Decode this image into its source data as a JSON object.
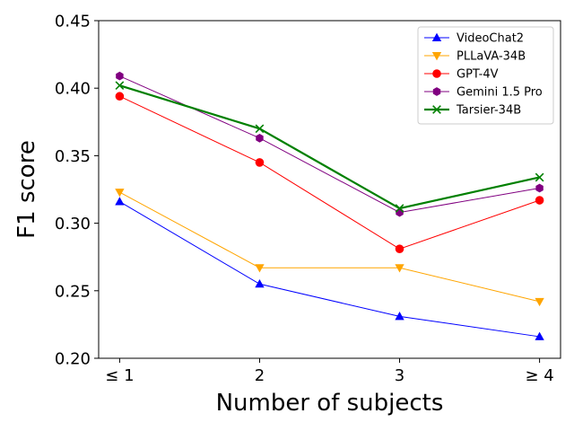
{
  "chart_data": {
    "type": "line",
    "title": "",
    "xlabel": "Number of subjects",
    "ylabel": "F1 score",
    "categories": [
      "≤ 1",
      "2",
      "3",
      "≥ 4"
    ],
    "ylim": [
      0.2,
      0.45
    ],
    "yticks": [
      "0.20",
      "0.25",
      "0.30",
      "0.35",
      "0.40",
      "0.45"
    ],
    "grid": false,
    "legend_position": "top-right",
    "series": [
      {
        "name": "VideoChat2",
        "color": "#0000ff",
        "marker": "triangle-up",
        "values": [
          0.316,
          0.255,
          0.231,
          0.216
        ]
      },
      {
        "name": "PLLaVA-34B",
        "color": "#ffa500",
        "marker": "triangle-down",
        "values": [
          0.323,
          0.267,
          0.267,
          0.242
        ]
      },
      {
        "name": "GPT-4V",
        "color": "#ff0000",
        "marker": "circle",
        "values": [
          0.394,
          0.345,
          0.281,
          0.317
        ]
      },
      {
        "name": "Gemini 1.5 Pro",
        "color": "#800080",
        "marker": "hexagon",
        "values": [
          0.409,
          0.363,
          0.308,
          0.326
        ]
      },
      {
        "name": "Tarsier-34B",
        "color": "#008000",
        "marker": "x",
        "values": [
          0.402,
          0.37,
          0.311,
          0.334
        ]
      }
    ]
  }
}
